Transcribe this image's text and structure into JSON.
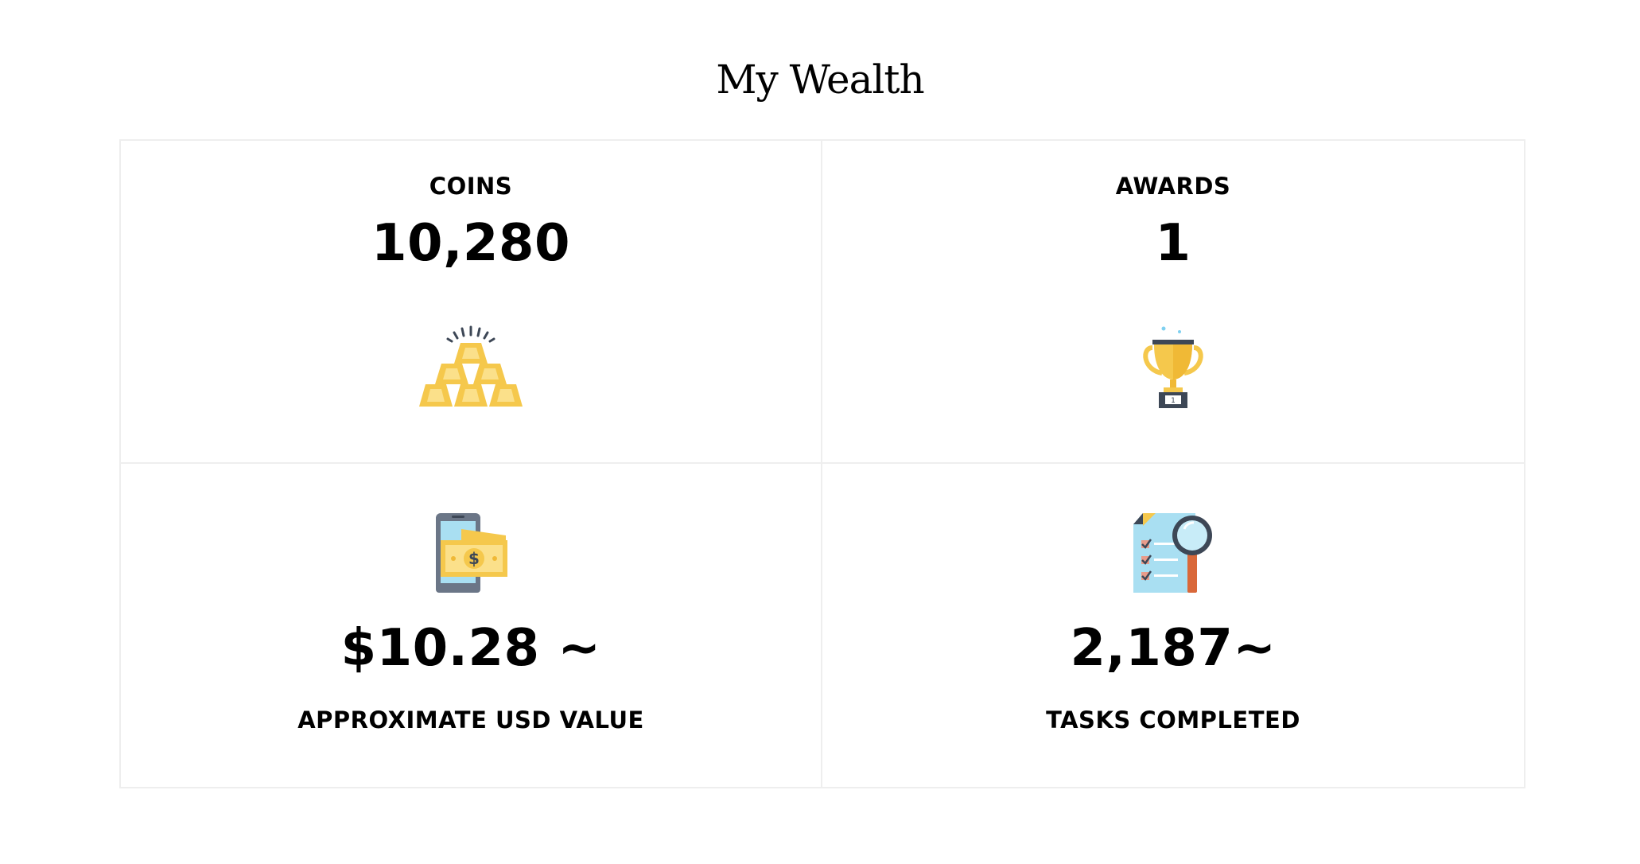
{
  "page": {
    "title": "My Wealth"
  },
  "stats": {
    "coins": {
      "label": "COINS",
      "value": "10,280",
      "icon": "gold-bars-icon"
    },
    "awards": {
      "label": "AWARDS",
      "value": "1",
      "icon": "trophy-icon",
      "trophy_plate": "1"
    },
    "usd": {
      "label": "APPROXIMATE USD VALUE",
      "value": "$10.28 ~",
      "icon": "phone-money-icon",
      "bill_symbol": "$"
    },
    "tasks": {
      "label": "TASKS COMPLETED",
      "value": "2,187~",
      "icon": "checklist-search-icon"
    }
  },
  "colors": {
    "gold": "#f5c84c",
    "gold_light": "#fbe08a",
    "border": "#eeeeee",
    "text": "#000000"
  }
}
